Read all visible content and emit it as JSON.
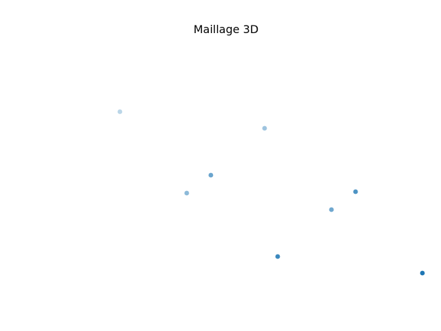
{
  "chart_data": {
    "type": "scatter",
    "title": "Maillage 3D",
    "projection": "3d",
    "axes_visible": false,
    "grid": false,
    "marker_color": "#1f77b4",
    "points": [
      {
        "x": 0,
        "y": 0,
        "z": 0
      },
      {
        "x": 1,
        "y": 0,
        "z": 0
      },
      {
        "x": 1,
        "y": 1,
        "z": 0
      },
      {
        "x": 0,
        "y": 1,
        "z": 0
      },
      {
        "x": 0,
        "y": 0,
        "z": 1
      },
      {
        "x": 1,
        "y": 0,
        "z": 1
      },
      {
        "x": 1,
        "y": 1,
        "z": 1
      },
      {
        "x": 0,
        "y": 1,
        "z": 1
      }
    ]
  }
}
